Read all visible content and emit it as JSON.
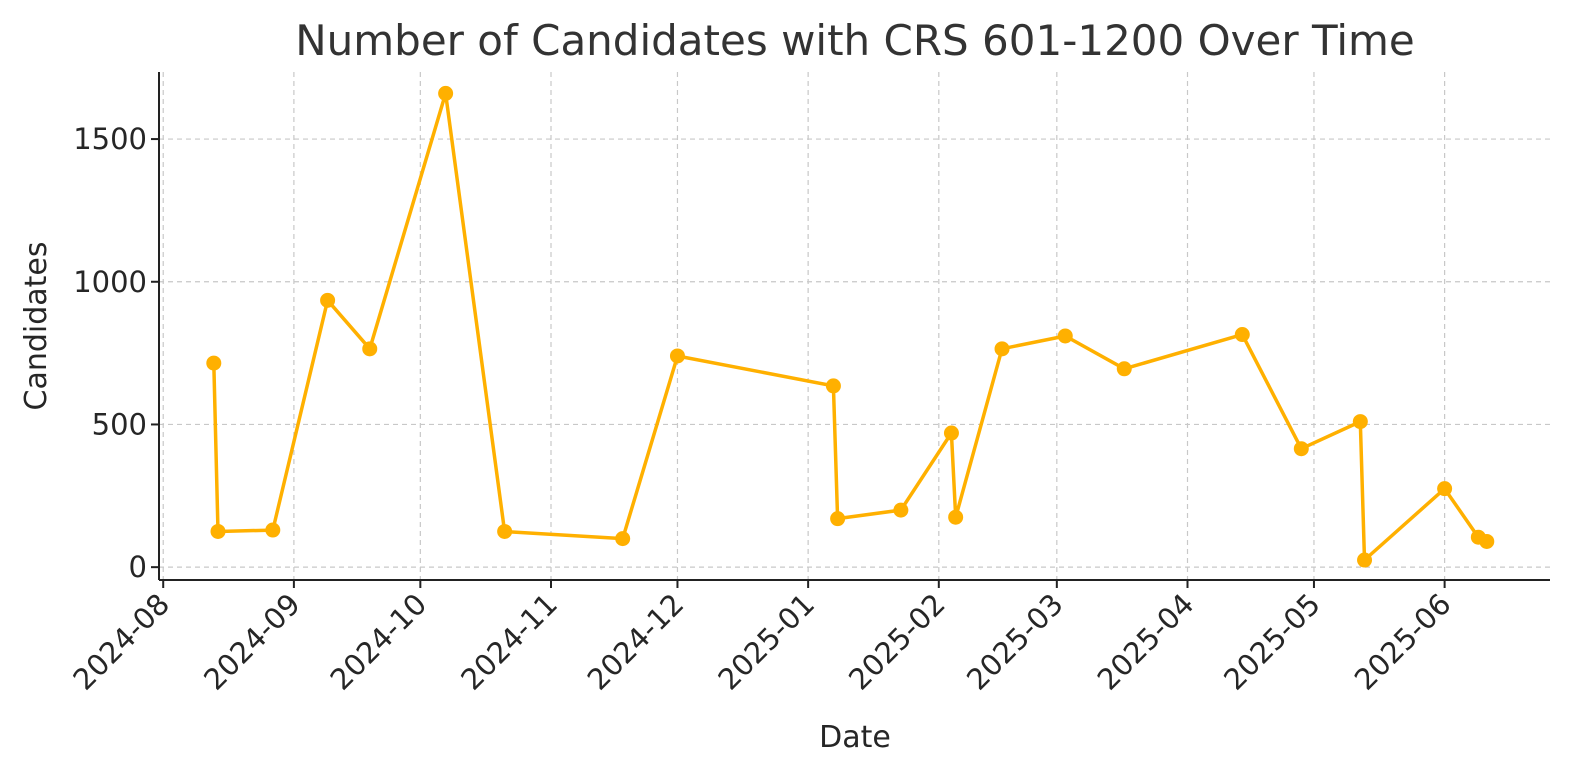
{
  "chart_data": {
    "type": "line",
    "title": "Number of Candidates with CRS 601-1200 Over Time",
    "xlabel": "Date",
    "ylabel": "Candidates",
    "x_ticks": [
      "2024-08",
      "2024-09",
      "2024-10",
      "2024-11",
      "2024-12",
      "2025-01",
      "2025-02",
      "2025-03",
      "2025-04",
      "2025-05",
      "2025-06"
    ],
    "y_ticks": [
      0,
      500,
      1000,
      1500
    ],
    "xlim": [
      "2024-07-31",
      "2025-06-26"
    ],
    "ylim": [
      -45,
      1735
    ],
    "grid": true,
    "line_color": "#FFB000",
    "series": [
      {
        "x": [
          "2024-08-13",
          "2024-08-14",
          "2024-08-27",
          "2024-09-09",
          "2024-09-19",
          "2024-10-07",
          "2024-10-21",
          "2024-11-18",
          "2024-12-01",
          "2025-01-07",
          "2025-01-08",
          "2025-01-23",
          "2025-02-04",
          "2025-02-05",
          "2025-02-16",
          "2025-03-03",
          "2025-03-17",
          "2025-04-14",
          "2025-04-28",
          "2025-05-12",
          "2025-05-13",
          "2025-06-01",
          "2025-06-09",
          "2025-06-11"
        ],
        "y": [
          715,
          125,
          130,
          935,
          765,
          1660,
          125,
          100,
          740,
          635,
          170,
          200,
          470,
          175,
          765,
          810,
          695,
          815,
          415,
          510,
          25,
          275,
          105,
          90
        ]
      }
    ]
  }
}
